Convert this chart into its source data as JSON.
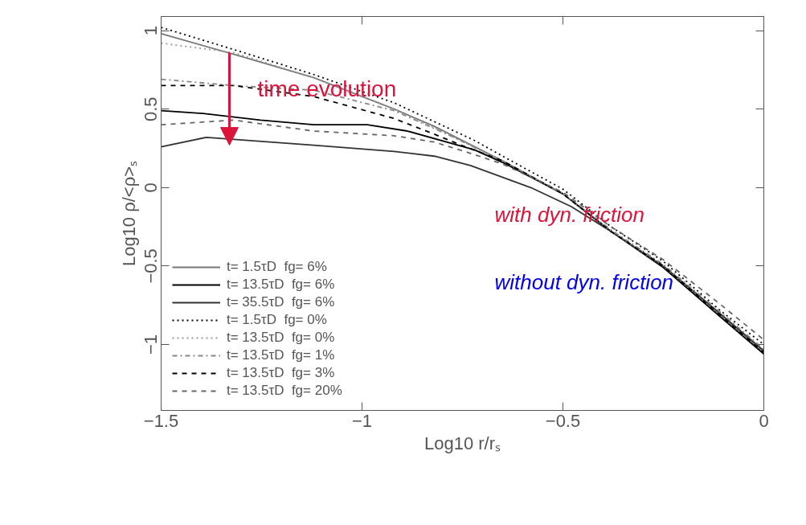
{
  "chart_data": {
    "type": "line",
    "xlabel": "Log10 r/rₛ",
    "ylabel": "Log10 ρ/<ρ>ₛ",
    "xlim": [
      -1.5,
      0
    ],
    "ylim": [
      -1.42,
      1.09
    ],
    "xticks": [
      -1.5,
      -1,
      -0.5,
      0
    ],
    "yticks": [
      -1,
      -0.5,
      0,
      0.5,
      1
    ],
    "grid": false,
    "legend": "bottom left",
    "marker": "none",
    "annotations": [
      "time evolution",
      "with dyn. friction",
      "without dyn. friction"
    ],
    "series": [
      {
        "name": "t= 1.5τD  fg= 6%",
        "color": "#777777",
        "line_style": "solid",
        "x": [
          -1.5,
          -1.32,
          -1.12,
          -0.92,
          -0.82,
          -0.65,
          -0.5,
          -0.38,
          -0.25,
          -0.11,
          0
        ],
        "values": [
          0.98,
          0.85,
          0.7,
          0.5,
          0.39,
          0.17,
          -0.04,
          -0.28,
          -0.5,
          -0.81,
          -1.05
        ]
      },
      {
        "name": "t= 13.5τD  fg= 6%",
        "color": "#000000",
        "line_style": "solid",
        "x": [
          -1.5,
          -1.387,
          -1.253,
          -1.12,
          -0.987,
          -0.887,
          -0.72,
          -0.65,
          -0.5,
          -0.38,
          -0.25,
          -0.11,
          0
        ],
        "values": [
          0.49,
          0.47,
          0.43,
          0.4,
          0.4,
          0.36,
          0.24,
          0.16,
          -0.04,
          -0.28,
          -0.51,
          -0.82,
          -1.06
        ]
      },
      {
        "name": "t= 35.5τD  fg= 6%",
        "color": "#333333",
        "line_style": "solid",
        "x": [
          -1.5,
          -1.387,
          -1.12,
          -0.92,
          -0.82,
          -0.73,
          -0.58,
          -0.48,
          -0.38,
          -0.25,
          -0.11,
          0
        ],
        "values": [
          0.26,
          0.32,
          0.27,
          0.23,
          0.2,
          0.14,
          0.0,
          -0.12,
          -0.28,
          -0.5,
          -0.8,
          -1.04
        ]
      },
      {
        "name": "t= 1.5τD  fg= 0%",
        "color": "#000000",
        "line_style": "dotted",
        "x": [
          -1.5,
          -1.32,
          -1.12,
          -0.92,
          -0.72,
          -0.65,
          -0.5,
          -0.38,
          -0.25,
          -0.11,
          0
        ],
        "values": [
          1.02,
          0.88,
          0.72,
          0.54,
          0.3,
          0.2,
          -0.01,
          -0.25,
          -0.47,
          -0.78,
          -1.0
        ]
      },
      {
        "name": "t= 13.5τD  fg= 0%",
        "color": "#999999",
        "line_style": "dotted",
        "x": [
          -1.5,
          -1.32,
          -1.12,
          -0.92,
          -0.82,
          -0.65,
          -0.5,
          -0.38,
          -0.25,
          -0.11,
          0
        ],
        "values": [
          0.92,
          0.86,
          0.7,
          0.5,
          0.38,
          0.17,
          -0.04,
          -0.28,
          -0.5,
          -0.81,
          -1.05
        ]
      },
      {
        "name": "t= 13.5τD  fg= 1%",
        "color": "#888888",
        "line_style": "dashdot",
        "x": [
          -1.5,
          -1.32,
          -1.12,
          -0.92,
          -0.78,
          -0.65,
          -0.5,
          -0.38,
          -0.25,
          -0.11,
          0
        ],
        "values": [
          0.69,
          0.65,
          0.62,
          0.49,
          0.33,
          0.17,
          -0.04,
          -0.27,
          -0.49,
          -0.79,
          -1.03
        ]
      },
      {
        "name": "t= 13.5τD  fg= 3%",
        "color": "#000000",
        "line_style": "dashed",
        "x": [
          -1.5,
          -1.32,
          -1.12,
          -0.92,
          -0.82,
          -0.753,
          -0.65,
          -0.5,
          -0.38,
          -0.25,
          -0.11,
          0
        ],
        "values": [
          0.65,
          0.65,
          0.58,
          0.44,
          0.34,
          0.27,
          0.17,
          -0.04,
          -0.28,
          -0.5,
          -0.81,
          -1.05
        ]
      },
      {
        "name": "t= 13.5τD  fg= 20%",
        "color": "#666666",
        "line_style": "dashed",
        "x": [
          -1.5,
          -1.32,
          -1.12,
          -0.92,
          -0.82,
          -0.72,
          -0.65,
          -0.5,
          -0.38,
          -0.25,
          -0.11,
          0
        ],
        "values": [
          0.4,
          0.43,
          0.36,
          0.33,
          0.29,
          0.21,
          0.15,
          -0.03,
          -0.25,
          -0.46,
          -0.74,
          -0.97
        ]
      }
    ]
  }
}
